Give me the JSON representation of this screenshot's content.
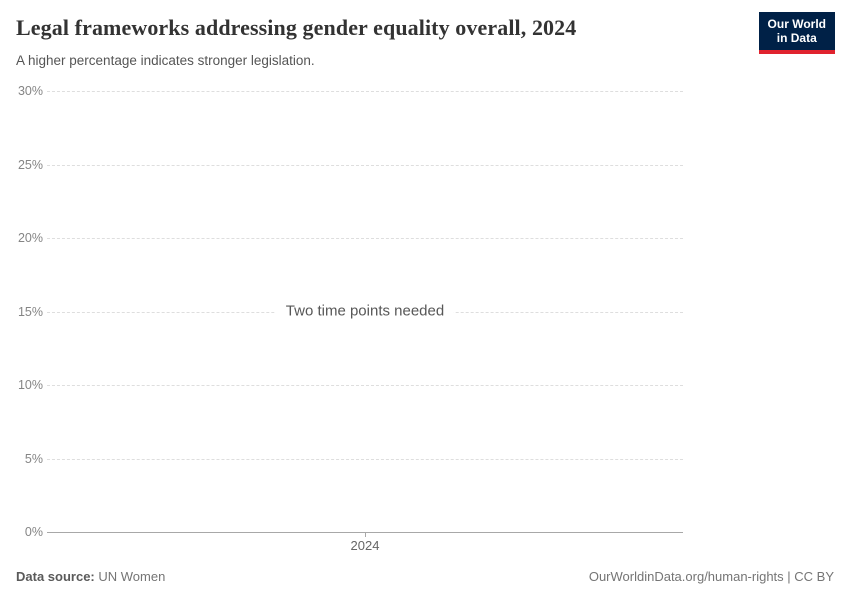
{
  "header": {
    "title": "Legal frameworks addressing gender equality overall, 2024",
    "subtitle": "A higher percentage indicates stronger legislation."
  },
  "logo": {
    "line1": "Our World",
    "line2": "in Data",
    "bg_color": "#002147",
    "accent_color": "#e0232e"
  },
  "chart_data": {
    "type": "line",
    "title": "Legal frameworks addressing gender equality overall, 2024",
    "subtitle": "A higher percentage indicates stronger legislation.",
    "series": [],
    "empty_message": "Two time points needed",
    "x": [
      2024
    ],
    "xticks": [
      "2024"
    ],
    "yticks": [
      "0%",
      "5%",
      "10%",
      "15%",
      "20%",
      "25%",
      "30%"
    ],
    "ytick_values": [
      0,
      5,
      10,
      15,
      20,
      25,
      30
    ],
    "ylim": [
      0,
      30
    ],
    "grid": "horizontal-dashed",
    "gridline_color": "#dedede",
    "axis_color": "#a8a8a8"
  },
  "footer": {
    "datasource_label": "Data source:",
    "datasource_value": "UN Women",
    "attribution": "OurWorldinData.org/human-rights | CC BY"
  }
}
